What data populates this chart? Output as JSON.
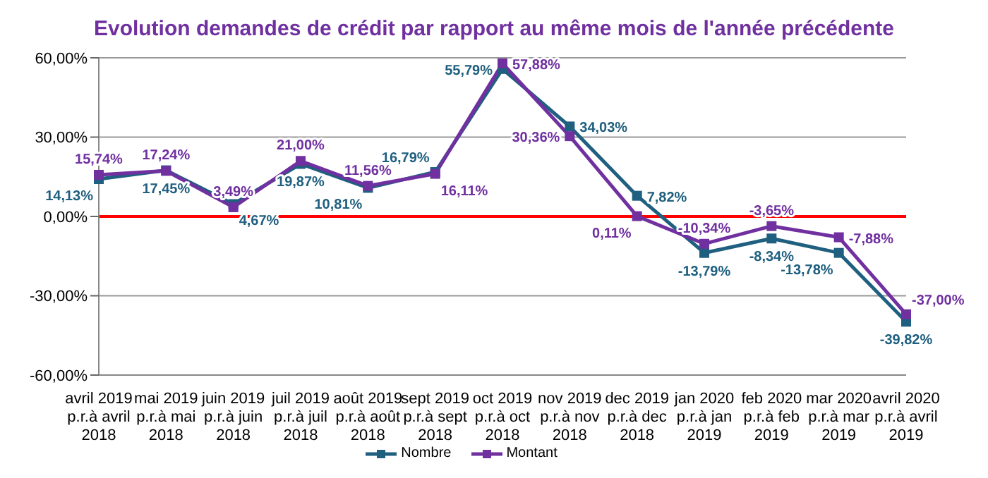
{
  "chart_data": {
    "type": "line",
    "title": "Evolution demandes de crédit par rapport au même mois de l'année précédente",
    "categories": [
      "avril 2019\np.r.à avril\n2018",
      "mai 2019\np.r.à mai\n2018",
      "juin 2019\np.r.à juin\n2018",
      "juil 2019\np.r.à juil\n2018",
      "août 2019\np.r.à août\n2018",
      "sept 2019\np.r.à sept\n2018",
      "oct 2019\np.r.à oct\n2018",
      "nov 2019\np.r.à nov\n2018",
      "dec 2019\np.r.à dec\n2018",
      "jan 2020\np.r.à jan\n2019",
      "feb 2020\np.r.à feb\n2019",
      "mar 2020\np.r.à mar\n2019",
      "avril 2020\np.r.à avril\n2019"
    ],
    "series": [
      {
        "name": "Nombre",
        "color": "#1f5f7f",
        "values": [
          14.13,
          17.45,
          4.67,
          19.87,
          10.81,
          16.79,
          55.79,
          34.03,
          7.82,
          -13.79,
          -8.34,
          -13.78,
          -39.82
        ],
        "value_labels": [
          "14,13%",
          "17,45%",
          "4,67%",
          "19,87%",
          "10,81%",
          "16,79%",
          "55,79%",
          "34,03%",
          "7,82%",
          "-13,79%",
          "-8,34%",
          "-13,78%",
          "-39,82%"
        ]
      },
      {
        "name": "Montant",
        "color": "#7030a0",
        "values": [
          15.74,
          17.24,
          3.49,
          21.0,
          11.56,
          16.11,
          57.88,
          30.36,
          0.11,
          -10.34,
          -3.65,
          -7.88,
          -37.0
        ],
        "value_labels": [
          "15,74%",
          "17,24%",
          "3,49%",
          "21,00%",
          "11,56%",
          "16,11%",
          "57,88%",
          "30,36%",
          "0,11%",
          "-10,34%",
          "-3,65%",
          "-7,88%",
          "-37,00%"
        ]
      }
    ],
    "ylim": [
      -60,
      60
    ],
    "yticks": [
      {
        "value": -60,
        "label": "-60,00%"
      },
      {
        "value": -30,
        "label": "-30,00%"
      },
      {
        "value": 0,
        "label": "0,00%"
      },
      {
        "value": 30,
        "label": "30,00%"
      },
      {
        "value": 60,
        "label": "60,00%"
      }
    ],
    "ref_lines": [
      {
        "axis": "y",
        "value": 0,
        "label": null,
        "color": "#ff0000"
      }
    ],
    "grid": "y",
    "legend": "bottom",
    "marker": "square",
    "line_style": "solid"
  }
}
